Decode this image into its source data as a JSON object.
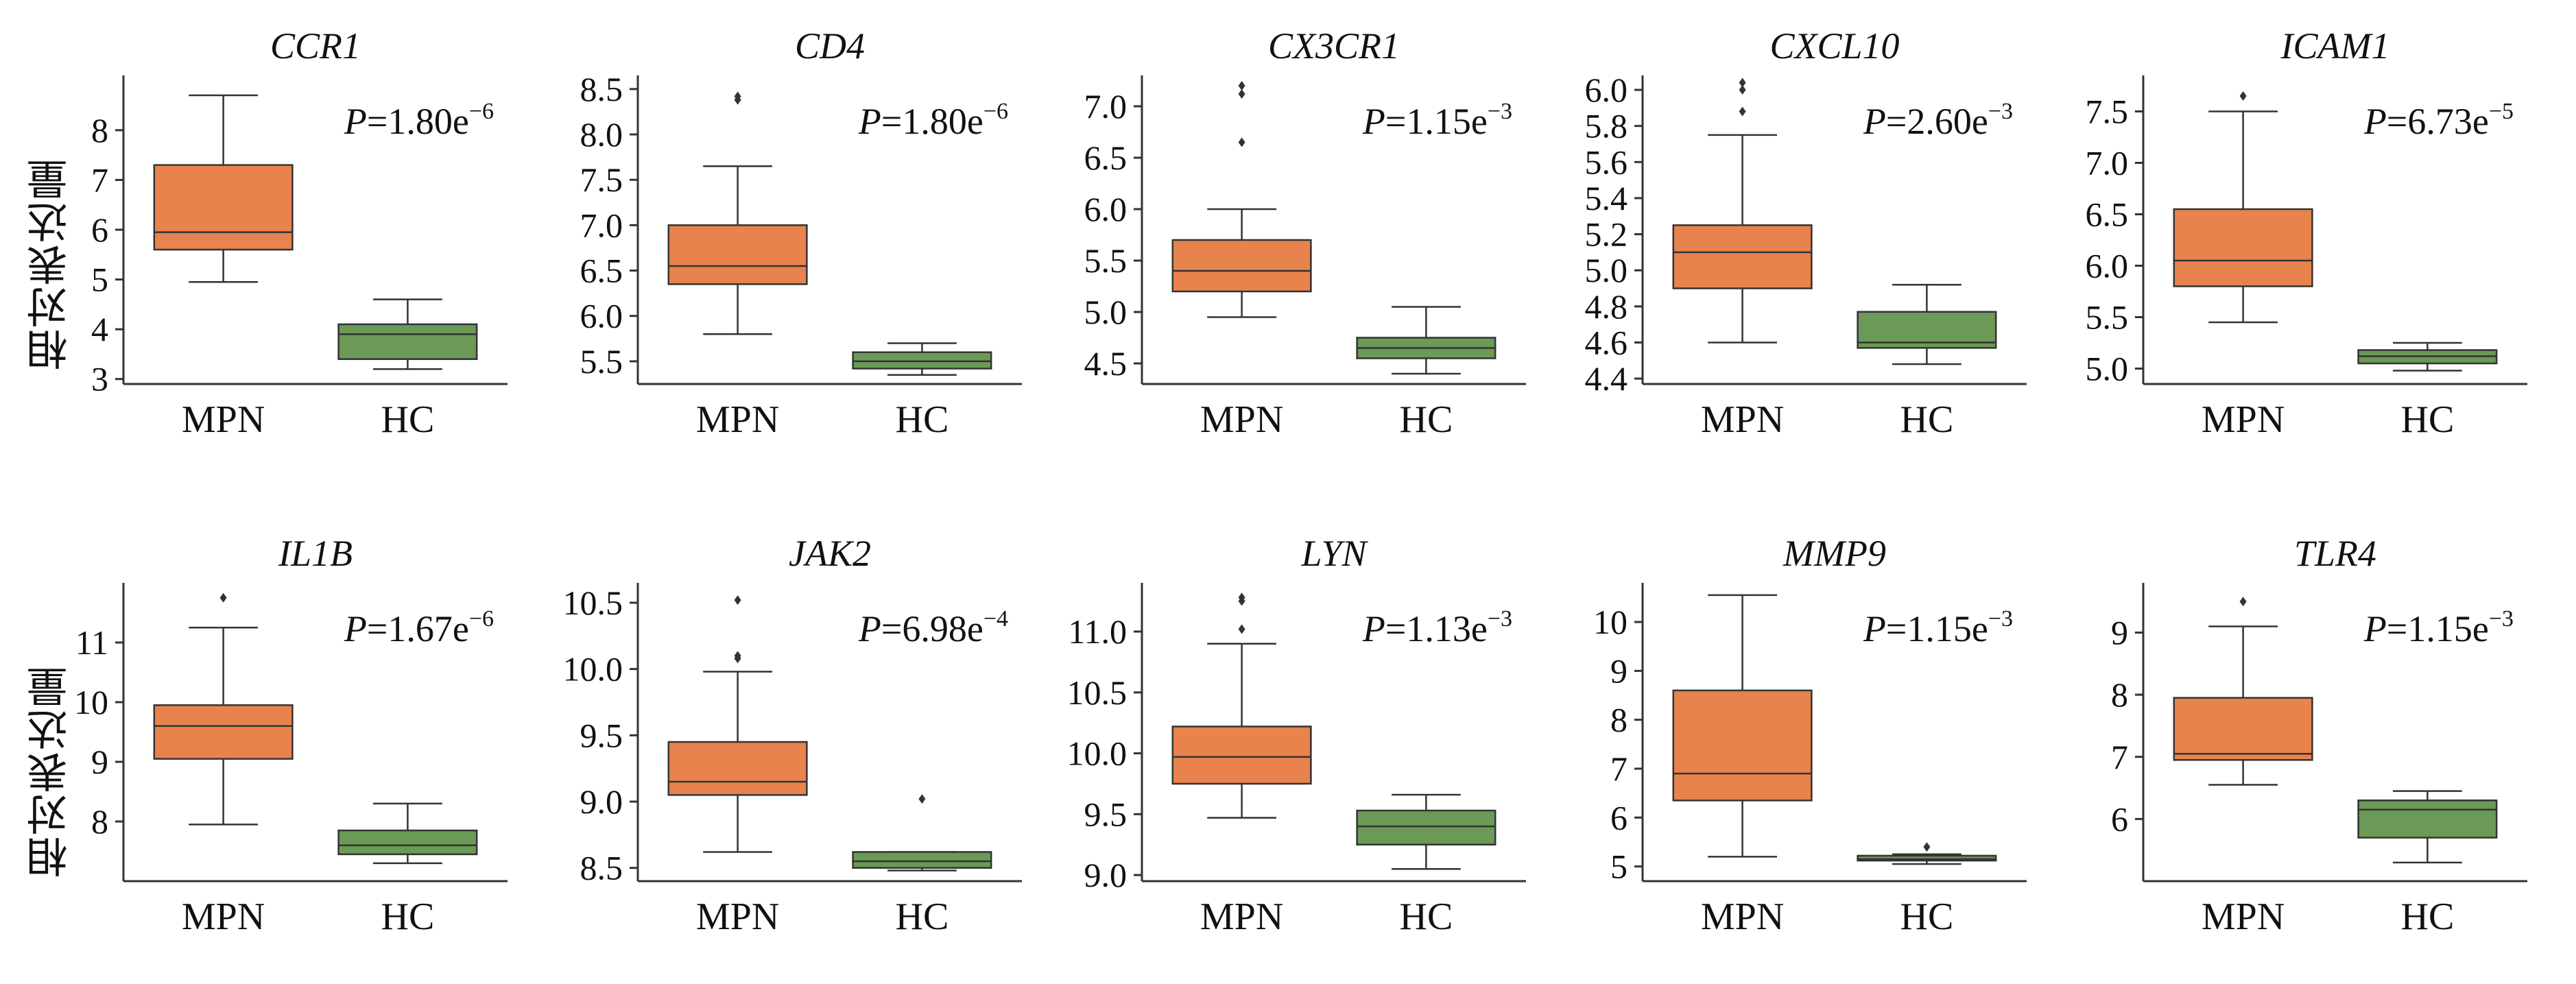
{
  "ylabel": "相对表达量",
  "colors": {
    "mpn": "#E8834E",
    "hc": "#6A9A55",
    "axis": "#333333"
  },
  "chart_data": [
    {
      "type": "box",
      "title": "CCR1",
      "p_base": "1.80e",
      "p_exp": "−6",
      "yticks": [
        3,
        4,
        5,
        6,
        7,
        8
      ],
      "ylim": [
        2.9,
        9.1
      ],
      "groups": [
        {
          "name": "MPN",
          "box": {
            "whislo": 4.95,
            "q1": 5.6,
            "med": 5.95,
            "q3": 7.3,
            "whishi": 8.7
          },
          "fliers": []
        },
        {
          "name": "HC",
          "box": {
            "whislo": 3.2,
            "q1": 3.4,
            "med": 3.9,
            "q3": 4.1,
            "whishi": 4.6
          },
          "fliers": []
        }
      ]
    },
    {
      "type": "box",
      "title": "CD4",
      "p_base": "1.80e",
      "p_exp": "−6",
      "yticks": [
        5.5,
        6.0,
        6.5,
        7.0,
        7.5,
        8.0,
        8.5
      ],
      "ylim": [
        5.25,
        8.65
      ],
      "groups": [
        {
          "name": "MPN",
          "box": {
            "whislo": 5.8,
            "q1": 6.35,
            "med": 6.55,
            "q3": 7.0,
            "whishi": 7.65
          },
          "fliers": [
            8.42,
            8.38
          ]
        },
        {
          "name": "HC",
          "box": {
            "whislo": 5.35,
            "q1": 5.42,
            "med": 5.5,
            "q3": 5.6,
            "whishi": 5.7
          },
          "fliers": []
        }
      ]
    },
    {
      "type": "box",
      "title": "CX3CR1",
      "p_base": "1.15e",
      "p_exp": "−3",
      "yticks": [
        4.5,
        5.0,
        5.5,
        6.0,
        6.5,
        7.0
      ],
      "ylim": [
        4.3,
        7.3
      ],
      "groups": [
        {
          "name": "MPN",
          "box": {
            "whislo": 4.95,
            "q1": 5.2,
            "med": 5.4,
            "q3": 5.7,
            "whishi": 6.0
          },
          "fliers": [
            6.65,
            7.12,
            7.2
          ]
        },
        {
          "name": "HC",
          "box": {
            "whislo": 4.4,
            "q1": 4.55,
            "med": 4.65,
            "q3": 4.75,
            "whishi": 5.05
          },
          "fliers": []
        }
      ]
    },
    {
      "type": "box",
      "title": "CXCL10",
      "p_base": "2.60e",
      "p_exp": "−3",
      "yticks": [
        4.4,
        4.6,
        4.8,
        5.0,
        5.2,
        5.4,
        5.6,
        5.8,
        6.0
      ],
      "ylim": [
        4.37,
        6.08
      ],
      "groups": [
        {
          "name": "MPN",
          "box": {
            "whislo": 4.6,
            "q1": 4.9,
            "med": 5.1,
            "q3": 5.25,
            "whishi": 5.75
          },
          "fliers": [
            5.88,
            6.0,
            6.04
          ]
        },
        {
          "name": "HC",
          "box": {
            "whislo": 4.48,
            "q1": 4.57,
            "med": 4.6,
            "q3": 4.77,
            "whishi": 4.92
          },
          "fliers": []
        }
      ]
    },
    {
      "type": "box",
      "title": "ICAM1",
      "p_base": "6.73e",
      "p_exp": "−5",
      "yticks": [
        5.0,
        5.5,
        6.0,
        6.5,
        7.0,
        7.5
      ],
      "ylim": [
        4.85,
        7.85
      ],
      "groups": [
        {
          "name": "MPN",
          "box": {
            "whislo": 5.45,
            "q1": 5.8,
            "med": 6.05,
            "q3": 6.55,
            "whishi": 7.5
          },
          "fliers": [
            7.65
          ]
        },
        {
          "name": "HC",
          "box": {
            "whislo": 4.98,
            "q1": 5.05,
            "med": 5.12,
            "q3": 5.18,
            "whishi": 5.25
          },
          "fliers": []
        }
      ]
    },
    {
      "type": "box",
      "title": "IL1B",
      "p_base": "1.67e",
      "p_exp": "−6",
      "yticks": [
        8,
        9,
        10,
        11
      ],
      "ylim": [
        7.0,
        12.0
      ],
      "groups": [
        {
          "name": "MPN",
          "box": {
            "whislo": 7.95,
            "q1": 9.05,
            "med": 9.6,
            "q3": 9.95,
            "whishi": 11.25
          },
          "fliers": [
            11.75
          ]
        },
        {
          "name": "HC",
          "box": {
            "whislo": 7.3,
            "q1": 7.45,
            "med": 7.6,
            "q3": 7.85,
            "whishi": 8.3
          },
          "fliers": []
        }
      ]
    },
    {
      "type": "box",
      "title": "JAK2",
      "p_base": "6.98e",
      "p_exp": "−4",
      "yticks": [
        8.5,
        9.0,
        9.5,
        10.0,
        10.5
      ],
      "ylim": [
        8.4,
        10.65
      ],
      "groups": [
        {
          "name": "MPN",
          "box": {
            "whislo": 8.62,
            "q1": 9.05,
            "med": 9.15,
            "q3": 9.45,
            "whishi": 9.98
          },
          "fliers": [
            10.08,
            10.1,
            10.52
          ]
        },
        {
          "name": "HC",
          "box": {
            "whislo": 8.48,
            "q1": 8.5,
            "med": 8.55,
            "q3": 8.62,
            "whishi": 8.62
          },
          "fliers": [
            9.02
          ]
        }
      ]
    },
    {
      "type": "box",
      "title": "LYN",
      "p_base": "1.13e",
      "p_exp": "−3",
      "yticks": [
        9.0,
        9.5,
        10.0,
        10.5,
        11.0
      ],
      "ylim": [
        8.95,
        11.4
      ],
      "groups": [
        {
          "name": "MPN",
          "box": {
            "whislo": 9.47,
            "q1": 9.75,
            "med": 9.97,
            "q3": 10.22,
            "whishi": 10.9
          },
          "fliers": [
            11.02,
            11.25,
            11.28
          ]
        },
        {
          "name": "HC",
          "box": {
            "whislo": 9.05,
            "q1": 9.25,
            "med": 9.4,
            "q3": 9.53,
            "whishi": 9.66
          },
          "fliers": []
        }
      ]
    },
    {
      "type": "box",
      "title": "MMP9",
      "p_base": "1.15e",
      "p_exp": "−3",
      "yticks": [
        5,
        6,
        7,
        8,
        9,
        10
      ],
      "ylim": [
        4.7,
        10.8
      ],
      "groups": [
        {
          "name": "MPN",
          "box": {
            "whislo": 5.2,
            "q1": 6.35,
            "med": 6.9,
            "q3": 8.6,
            "whishi": 10.55
          },
          "fliers": []
        },
        {
          "name": "HC",
          "box": {
            "whislo": 5.05,
            "q1": 5.12,
            "med": 5.15,
            "q3": 5.22,
            "whishi": 5.25
          },
          "fliers": [
            5.4
          ]
        }
      ]
    },
    {
      "type": "box",
      "title": "TLR4",
      "p_base": "1.15e",
      "p_exp": "−3",
      "yticks": [
        6,
        7,
        8,
        9
      ],
      "ylim": [
        5.0,
        9.8
      ],
      "groups": [
        {
          "name": "MPN",
          "box": {
            "whislo": 6.55,
            "q1": 6.95,
            "med": 7.05,
            "q3": 7.95,
            "whishi": 9.1
          },
          "fliers": [
            9.5
          ]
        },
        {
          "name": "HC",
          "box": {
            "whislo": 5.3,
            "q1": 5.7,
            "med": 6.15,
            "q3": 6.3,
            "whishi": 6.45
          },
          "fliers": []
        }
      ]
    }
  ]
}
